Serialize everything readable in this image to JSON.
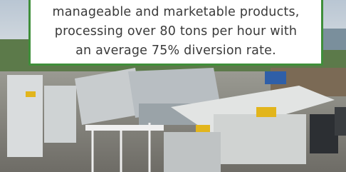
{
  "caption": {
    "lines": [
      "manageable and marketable products,",
      "processing over 80 tons per hour with",
      "an average 75% diversion rate."
    ]
  }
}
